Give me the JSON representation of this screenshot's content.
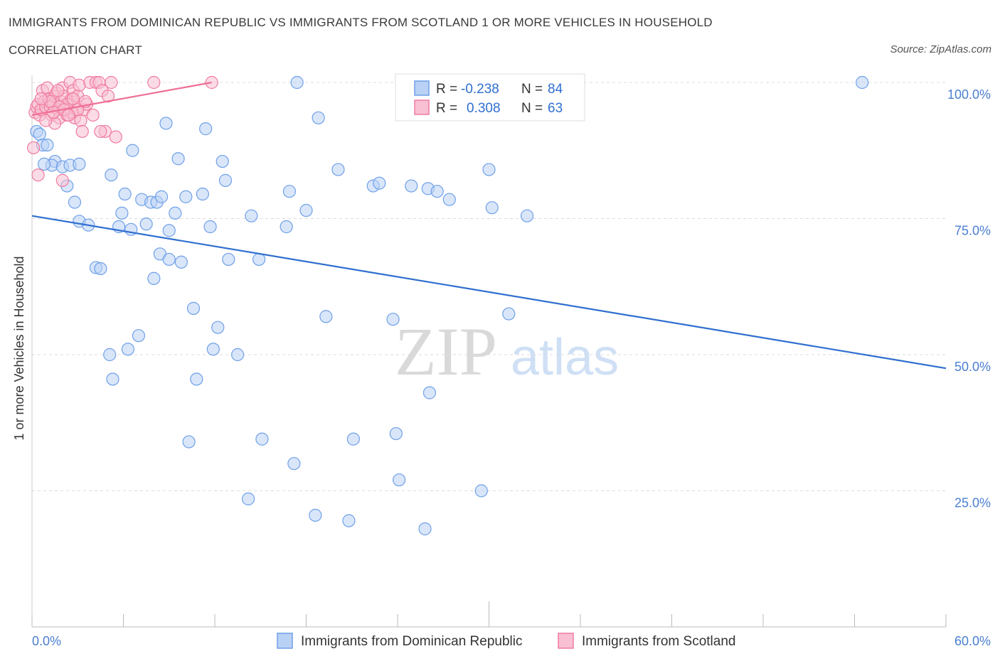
{
  "title": "IMMIGRANTS FROM DOMINICAN REPUBLIC VS IMMIGRANTS FROM SCOTLAND 1 OR MORE VEHICLES IN HOUSEHOLD",
  "subtitle": "CORRELATION CHART",
  "source": "Source: ZipAtlas.com",
  "colors": {
    "blue": "#6fa0e8",
    "blue_fill": "#b9d1f5",
    "pink": "#f07ba0",
    "pink_fill": "#f8c0d2",
    "blue_line": "#2f6fd0",
    "pink_line": "#ef6f95"
  },
  "chart_data": {
    "type": "scatter",
    "ylabel": "1 or more Vehicles in Household",
    "xlim": [
      0,
      60
    ],
    "ylim": [
      0,
      100
    ],
    "x_tick_labels": [
      "0.0%",
      "60.0%"
    ],
    "y_tick_labels": [
      "25.0%",
      "50.0%",
      "75.0%",
      "100.0%"
    ],
    "y_ticks": [
      25,
      50,
      75,
      100
    ],
    "legend_top": [
      {
        "r_label": "R =",
        "r_value": "-0.238",
        "n_label": "N =",
        "n_value": "84"
      },
      {
        "r_label": "R =",
        "r_value": "0.308",
        "n_label": "N =",
        "n_value": "63"
      }
    ],
    "series": [
      {
        "name": "Immigrants from Dominican Republic",
        "color": "blue",
        "trend": {
          "x": [
            0,
            60
          ],
          "y": [
            75.5,
            47.5
          ]
        },
        "points": [
          [
            0.3,
            91.0
          ],
          [
            0.5,
            90.5
          ],
          [
            0.7,
            88.5
          ],
          [
            1.0,
            88.5
          ],
          [
            1.5,
            85.5
          ],
          [
            1.3,
            84.8
          ],
          [
            2.0,
            84.5
          ],
          [
            2.5,
            84.8
          ],
          [
            3.1,
            85.0
          ],
          [
            2.3,
            81.0
          ],
          [
            2.8,
            78.0
          ],
          [
            3.1,
            74.5
          ],
          [
            3.7,
            73.8
          ],
          [
            4.2,
            66.0
          ],
          [
            4.5,
            65.8
          ],
          [
            5.1,
            50.0
          ],
          [
            5.3,
            45.5
          ],
          [
            5.2,
            83.0
          ],
          [
            5.7,
            73.5
          ],
          [
            5.9,
            76.0
          ],
          [
            6.1,
            79.5
          ],
          [
            6.5,
            73.0
          ],
          [
            6.3,
            51.0
          ],
          [
            6.6,
            87.5
          ],
          [
            7.0,
            53.5
          ],
          [
            7.2,
            78.5
          ],
          [
            7.5,
            74.0
          ],
          [
            7.8,
            78.0
          ],
          [
            8.0,
            64.0
          ],
          [
            8.2,
            78.0
          ],
          [
            8.4,
            68.5
          ],
          [
            8.8,
            92.5
          ],
          [
            9.0,
            72.8
          ],
          [
            9.4,
            76.0
          ],
          [
            9.6,
            86.0
          ],
          [
            9.8,
            67.0
          ],
          [
            10.1,
            79.0
          ],
          [
            10.3,
            34.0
          ],
          [
            10.6,
            58.5
          ],
          [
            10.8,
            45.5
          ],
          [
            11.2,
            79.5
          ],
          [
            11.4,
            91.5
          ],
          [
            11.7,
            73.5
          ],
          [
            11.9,
            51.0
          ],
          [
            12.2,
            55.0
          ],
          [
            12.5,
            85.5
          ],
          [
            12.7,
            82.0
          ],
          [
            12.9,
            67.5
          ],
          [
            13.5,
            50.0
          ],
          [
            14.2,
            23.5
          ],
          [
            14.4,
            75.5
          ],
          [
            14.9,
            67.5
          ],
          [
            15.1,
            34.5
          ],
          [
            16.7,
            73.5
          ],
          [
            16.9,
            80.0
          ],
          [
            17.2,
            30.0
          ],
          [
            17.4,
            100.0
          ],
          [
            18.0,
            76.5
          ],
          [
            18.6,
            20.5
          ],
          [
            18.8,
            93.5
          ],
          [
            19.3,
            57.0
          ],
          [
            20.1,
            84.0
          ],
          [
            20.8,
            19.5
          ],
          [
            21.1,
            34.5
          ],
          [
            22.4,
            81.0
          ],
          [
            22.8,
            81.5
          ],
          [
            23.7,
            56.5
          ],
          [
            23.9,
            35.5
          ],
          [
            24.1,
            27.0
          ],
          [
            24.9,
            81.0
          ],
          [
            25.8,
            18.0
          ],
          [
            26.0,
            80.5
          ],
          [
            26.1,
            43.0
          ],
          [
            26.6,
            80.0
          ],
          [
            27.4,
            78.5
          ],
          [
            29.5,
            25.0
          ],
          [
            30.0,
            84.0
          ],
          [
            30.2,
            77.0
          ],
          [
            31.3,
            57.5
          ],
          [
            32.5,
            75.5
          ],
          [
            9.0,
            67.5
          ],
          [
            8.5,
            79.0
          ],
          [
            54.5,
            100.0
          ],
          [
            0.8,
            85.0
          ]
        ]
      },
      {
        "name": "Immigrants from Scotland",
        "color": "pink",
        "trend": {
          "x": [
            0,
            11.8
          ],
          "y": [
            94.0,
            100.0
          ]
        },
        "points": [
          [
            0.1,
            88.0
          ],
          [
            0.2,
            94.5
          ],
          [
            0.3,
            95.5
          ],
          [
            0.4,
            96.0
          ],
          [
            0.5,
            94.0
          ],
          [
            0.4,
            83.0
          ],
          [
            0.6,
            95.0
          ],
          [
            0.7,
            98.5
          ],
          [
            0.8,
            96.5
          ],
          [
            0.9,
            95.5
          ],
          [
            1.0,
            99.0
          ],
          [
            1.1,
            97.0
          ],
          [
            1.2,
            95.5
          ],
          [
            1.3,
            94.0
          ],
          [
            1.4,
            96.0
          ],
          [
            1.5,
            97.5
          ],
          [
            1.6,
            98.0
          ],
          [
            1.7,
            95.0
          ],
          [
            1.8,
            93.5
          ],
          [
            1.9,
            96.5
          ],
          [
            2.0,
            99.0
          ],
          [
            2.1,
            97.5
          ],
          [
            2.2,
            95.0
          ],
          [
            2.3,
            94.0
          ],
          [
            2.4,
            96.0
          ],
          [
            2.5,
            100.0
          ],
          [
            2.6,
            97.0
          ],
          [
            2.7,
            98.5
          ],
          [
            2.8,
            93.5
          ],
          [
            2.9,
            95.0
          ],
          [
            3.0,
            97.5
          ],
          [
            3.1,
            99.5
          ],
          [
            3.2,
            93.0
          ],
          [
            3.3,
            91.0
          ],
          [
            3.4,
            95.0
          ],
          [
            3.6,
            96.0
          ],
          [
            3.8,
            100.0
          ],
          [
            4.0,
            94.0
          ],
          [
            4.2,
            100.0
          ],
          [
            4.4,
            100.0
          ],
          [
            4.6,
            98.5
          ],
          [
            4.8,
            91.0
          ],
          [
            5.0,
            97.5
          ],
          [
            5.2,
            100.0
          ],
          [
            5.5,
            90.0
          ],
          [
            8.0,
            100.0
          ],
          [
            11.8,
            100.0
          ],
          [
            2.0,
            82.0
          ],
          [
            1.5,
            92.5
          ],
          [
            2.6,
            94.5
          ],
          [
            3.0,
            95.0
          ],
          [
            1.2,
            96.5
          ],
          [
            0.9,
            93.0
          ],
          [
            2.3,
            96.0
          ],
          [
            1.8,
            95.5
          ],
          [
            2.7,
            97.0
          ],
          [
            1.4,
            94.5
          ],
          [
            0.6,
            97.0
          ],
          [
            2.1,
            95.0
          ],
          [
            3.5,
            96.5
          ],
          [
            4.5,
            91.0
          ],
          [
            1.7,
            98.5
          ],
          [
            2.4,
            94.0
          ]
        ]
      }
    ]
  },
  "watermark": {
    "part1": "ZIP",
    "part2": "atlas"
  }
}
